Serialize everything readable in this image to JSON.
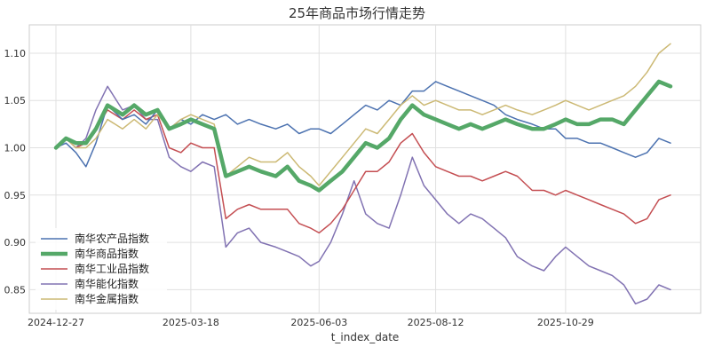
{
  "chart_data": {
    "type": "line",
    "title": "25年商品市场行情走势",
    "xlabel": "t_index_date",
    "ylabel": "",
    "x_ticks": [
      "2024-12-27",
      "2025-03-18",
      "2025-06-03",
      "2025-08-12",
      "2025-10-29"
    ],
    "x_range": [
      "2024-12-27",
      "2025-12-31"
    ],
    "ylim": [
      0.825,
      1.13
    ],
    "y_ticks": [
      0.85,
      0.9,
      0.95,
      1.0,
      1.05,
      1.1
    ],
    "y_tick_labels": [
      "0.85",
      "0.90",
      "0.95",
      "1.00",
      "1.05",
      "1.10"
    ],
    "grid": true,
    "legend_position": "lower-left",
    "series": [
      {
        "name": "南华农产品指数",
        "color": "#4c72b0",
        "points": [
          [
            "2024-12-27",
            1.0
          ],
          [
            "2025-01-02",
            1.005
          ],
          [
            "2025-01-08",
            0.995
          ],
          [
            "2025-01-14",
            0.98
          ],
          [
            "2025-01-20",
            1.005
          ],
          [
            "2025-01-27",
            1.045
          ],
          [
            "2025-02-05",
            1.03
          ],
          [
            "2025-02-12",
            1.035
          ],
          [
            "2025-02-19",
            1.025
          ],
          [
            "2025-02-26",
            1.04
          ],
          [
            "2025-03-05",
            1.02
          ],
          [
            "2025-03-12",
            1.03
          ],
          [
            "2025-03-18",
            1.025
          ],
          [
            "2025-03-25",
            1.035
          ],
          [
            "2025-04-01",
            1.03
          ],
          [
            "2025-04-08",
            1.035
          ],
          [
            "2025-04-15",
            1.025
          ],
          [
            "2025-04-22",
            1.03
          ],
          [
            "2025-04-29",
            1.025
          ],
          [
            "2025-05-08",
            1.02
          ],
          [
            "2025-05-15",
            1.025
          ],
          [
            "2025-05-22",
            1.015
          ],
          [
            "2025-05-29",
            1.02
          ],
          [
            "2025-06-03",
            1.02
          ],
          [
            "2025-06-10",
            1.015
          ],
          [
            "2025-06-17",
            1.025
          ],
          [
            "2025-06-24",
            1.035
          ],
          [
            "2025-07-01",
            1.045
          ],
          [
            "2025-07-08",
            1.04
          ],
          [
            "2025-07-15",
            1.05
          ],
          [
            "2025-07-22",
            1.045
          ],
          [
            "2025-07-29",
            1.06
          ],
          [
            "2025-08-05",
            1.06
          ],
          [
            "2025-08-12",
            1.07
          ],
          [
            "2025-08-19",
            1.065
          ],
          [
            "2025-08-26",
            1.06
          ],
          [
            "2025-09-02",
            1.055
          ],
          [
            "2025-09-09",
            1.05
          ],
          [
            "2025-09-16",
            1.045
          ],
          [
            "2025-09-23",
            1.035
          ],
          [
            "2025-09-30",
            1.03
          ],
          [
            "2025-10-09",
            1.025
          ],
          [
            "2025-10-16",
            1.02
          ],
          [
            "2025-10-23",
            1.02
          ],
          [
            "2025-10-29",
            1.01
          ],
          [
            "2025-11-05",
            1.01
          ],
          [
            "2025-11-12",
            1.005
          ],
          [
            "2025-11-19",
            1.005
          ],
          [
            "2025-11-26",
            1.0
          ],
          [
            "2025-12-03",
            0.995
          ],
          [
            "2025-12-10",
            0.99
          ],
          [
            "2025-12-17",
            0.995
          ],
          [
            "2025-12-24",
            1.01
          ],
          [
            "2025-12-31",
            1.005
          ]
        ]
      },
      {
        "name": "南华商品指数",
        "color": "#55a868",
        "points": [
          [
            "2024-12-27",
            1.0
          ],
          [
            "2025-01-02",
            1.01
          ],
          [
            "2025-01-08",
            1.005
          ],
          [
            "2025-01-14",
            1.005
          ],
          [
            "2025-01-20",
            1.02
          ],
          [
            "2025-01-27",
            1.045
          ],
          [
            "2025-02-05",
            1.035
          ],
          [
            "2025-02-12",
            1.045
          ],
          [
            "2025-02-19",
            1.035
          ],
          [
            "2025-02-26",
            1.04
          ],
          [
            "2025-03-05",
            1.02
          ],
          [
            "2025-03-12",
            1.025
          ],
          [
            "2025-03-18",
            1.03
          ],
          [
            "2025-03-25",
            1.025
          ],
          [
            "2025-04-01",
            1.02
          ],
          [
            "2025-04-08",
            0.97
          ],
          [
            "2025-04-15",
            0.975
          ],
          [
            "2025-04-22",
            0.98
          ],
          [
            "2025-04-29",
            0.975
          ],
          [
            "2025-05-08",
            0.97
          ],
          [
            "2025-05-15",
            0.98
          ],
          [
            "2025-05-22",
            0.965
          ],
          [
            "2025-05-29",
            0.96
          ],
          [
            "2025-06-03",
            0.955
          ],
          [
            "2025-06-10",
            0.965
          ],
          [
            "2025-06-17",
            0.975
          ],
          [
            "2025-06-24",
            0.99
          ],
          [
            "2025-07-01",
            1.005
          ],
          [
            "2025-07-08",
            1.0
          ],
          [
            "2025-07-15",
            1.01
          ],
          [
            "2025-07-22",
            1.03
          ],
          [
            "2025-07-29",
            1.045
          ],
          [
            "2025-08-05",
            1.035
          ],
          [
            "2025-08-12",
            1.03
          ],
          [
            "2025-08-19",
            1.025
          ],
          [
            "2025-08-26",
            1.02
          ],
          [
            "2025-09-02",
            1.025
          ],
          [
            "2025-09-09",
            1.02
          ],
          [
            "2025-09-16",
            1.025
          ],
          [
            "2025-09-23",
            1.03
          ],
          [
            "2025-09-30",
            1.025
          ],
          [
            "2025-10-09",
            1.02
          ],
          [
            "2025-10-16",
            1.02
          ],
          [
            "2025-10-23",
            1.025
          ],
          [
            "2025-10-29",
            1.03
          ],
          [
            "2025-11-05",
            1.025
          ],
          [
            "2025-11-12",
            1.025
          ],
          [
            "2025-11-19",
            1.03
          ],
          [
            "2025-11-26",
            1.03
          ],
          [
            "2025-12-03",
            1.025
          ],
          [
            "2025-12-10",
            1.04
          ],
          [
            "2025-12-17",
            1.055
          ],
          [
            "2025-12-24",
            1.07
          ],
          [
            "2025-12-31",
            1.065
          ]
        ]
      },
      {
        "name": "南华工业品指数",
        "color": "#c44e52",
        "points": [
          [
            "2024-12-27",
            1.0
          ],
          [
            "2025-01-02",
            1.01
          ],
          [
            "2025-01-08",
            1.0
          ],
          [
            "2025-01-14",
            1.005
          ],
          [
            "2025-01-20",
            1.02
          ],
          [
            "2025-01-27",
            1.04
          ],
          [
            "2025-02-05",
            1.03
          ],
          [
            "2025-02-12",
            1.04
          ],
          [
            "2025-02-19",
            1.03
          ],
          [
            "2025-02-26",
            1.035
          ],
          [
            "2025-03-05",
            1.0
          ],
          [
            "2025-03-12",
            0.995
          ],
          [
            "2025-03-18",
            1.005
          ],
          [
            "2025-03-25",
            1.0
          ],
          [
            "2025-04-01",
            1.0
          ],
          [
            "2025-04-08",
            0.925
          ],
          [
            "2025-04-15",
            0.935
          ],
          [
            "2025-04-22",
            0.94
          ],
          [
            "2025-04-29",
            0.935
          ],
          [
            "2025-05-08",
            0.935
          ],
          [
            "2025-05-15",
            0.935
          ],
          [
            "2025-05-22",
            0.92
          ],
          [
            "2025-05-29",
            0.915
          ],
          [
            "2025-06-03",
            0.91
          ],
          [
            "2025-06-10",
            0.92
          ],
          [
            "2025-06-17",
            0.935
          ],
          [
            "2025-06-24",
            0.955
          ],
          [
            "2025-07-01",
            0.975
          ],
          [
            "2025-07-08",
            0.975
          ],
          [
            "2025-07-15",
            0.985
          ],
          [
            "2025-07-22",
            1.005
          ],
          [
            "2025-07-29",
            1.015
          ],
          [
            "2025-08-05",
            0.995
          ],
          [
            "2025-08-12",
            0.98
          ],
          [
            "2025-08-19",
            0.975
          ],
          [
            "2025-08-26",
            0.97
          ],
          [
            "2025-09-02",
            0.97
          ],
          [
            "2025-09-09",
            0.965
          ],
          [
            "2025-09-16",
            0.97
          ],
          [
            "2025-09-23",
            0.975
          ],
          [
            "2025-09-30",
            0.97
          ],
          [
            "2025-10-09",
            0.955
          ],
          [
            "2025-10-16",
            0.955
          ],
          [
            "2025-10-23",
            0.95
          ],
          [
            "2025-10-29",
            0.955
          ],
          [
            "2025-11-05",
            0.95
          ],
          [
            "2025-11-12",
            0.945
          ],
          [
            "2025-11-19",
            0.94
          ],
          [
            "2025-11-26",
            0.935
          ],
          [
            "2025-12-03",
            0.93
          ],
          [
            "2025-12-10",
            0.92
          ],
          [
            "2025-12-17",
            0.925
          ],
          [
            "2025-12-24",
            0.945
          ],
          [
            "2025-12-31",
            0.95
          ]
        ]
      },
      {
        "name": "南华能化指数",
        "color": "#8172b2",
        "points": [
          [
            "2024-12-27",
            1.0
          ],
          [
            "2025-01-02",
            1.01
          ],
          [
            "2025-01-08",
            1.0
          ],
          [
            "2025-01-14",
            1.01
          ],
          [
            "2025-01-20",
            1.04
          ],
          [
            "2025-01-27",
            1.065
          ],
          [
            "2025-02-05",
            1.04
          ],
          [
            "2025-02-12",
            1.045
          ],
          [
            "2025-02-19",
            1.03
          ],
          [
            "2025-02-26",
            1.03
          ],
          [
            "2025-03-05",
            0.99
          ],
          [
            "2025-03-12",
            0.98
          ],
          [
            "2025-03-18",
            0.975
          ],
          [
            "2025-03-25",
            0.985
          ],
          [
            "2025-04-01",
            0.98
          ],
          [
            "2025-04-08",
            0.895
          ],
          [
            "2025-04-15",
            0.91
          ],
          [
            "2025-04-22",
            0.915
          ],
          [
            "2025-04-29",
            0.9
          ],
          [
            "2025-05-08",
            0.895
          ],
          [
            "2025-05-15",
            0.89
          ],
          [
            "2025-05-22",
            0.885
          ],
          [
            "2025-05-29",
            0.875
          ],
          [
            "2025-06-03",
            0.88
          ],
          [
            "2025-06-10",
            0.9
          ],
          [
            "2025-06-17",
            0.93
          ],
          [
            "2025-06-24",
            0.965
          ],
          [
            "2025-07-01",
            0.93
          ],
          [
            "2025-07-08",
            0.92
          ],
          [
            "2025-07-15",
            0.915
          ],
          [
            "2025-07-22",
            0.95
          ],
          [
            "2025-07-29",
            0.99
          ],
          [
            "2025-08-05",
            0.96
          ],
          [
            "2025-08-12",
            0.945
          ],
          [
            "2025-08-19",
            0.93
          ],
          [
            "2025-08-26",
            0.92
          ],
          [
            "2025-09-02",
            0.93
          ],
          [
            "2025-09-09",
            0.925
          ],
          [
            "2025-09-16",
            0.915
          ],
          [
            "2025-09-23",
            0.905
          ],
          [
            "2025-09-30",
            0.885
          ],
          [
            "2025-10-09",
            0.875
          ],
          [
            "2025-10-16",
            0.87
          ],
          [
            "2025-10-23",
            0.885
          ],
          [
            "2025-10-29",
            0.895
          ],
          [
            "2025-11-05",
            0.885
          ],
          [
            "2025-11-12",
            0.875
          ],
          [
            "2025-11-19",
            0.87
          ],
          [
            "2025-11-26",
            0.865
          ],
          [
            "2025-12-03",
            0.855
          ],
          [
            "2025-12-10",
            0.835
          ],
          [
            "2025-12-17",
            0.84
          ],
          [
            "2025-12-24",
            0.855
          ],
          [
            "2025-12-31",
            0.85
          ]
        ]
      },
      {
        "name": "南华金属指数",
        "color": "#ccb974",
        "points": [
          [
            "2024-12-27",
            1.0
          ],
          [
            "2025-01-02",
            1.01
          ],
          [
            "2025-01-08",
            1.0
          ],
          [
            "2025-01-14",
            1.0
          ],
          [
            "2025-01-20",
            1.01
          ],
          [
            "2025-01-27",
            1.03
          ],
          [
            "2025-02-05",
            1.02
          ],
          [
            "2025-02-12",
            1.03
          ],
          [
            "2025-02-19",
            1.02
          ],
          [
            "2025-02-26",
            1.035
          ],
          [
            "2025-03-05",
            1.02
          ],
          [
            "2025-03-12",
            1.03
          ],
          [
            "2025-03-18",
            1.035
          ],
          [
            "2025-03-25",
            1.03
          ],
          [
            "2025-04-01",
            1.025
          ],
          [
            "2025-04-08",
            0.97
          ],
          [
            "2025-04-15",
            0.98
          ],
          [
            "2025-04-22",
            0.99
          ],
          [
            "2025-04-29",
            0.985
          ],
          [
            "2025-05-08",
            0.985
          ],
          [
            "2025-05-15",
            0.995
          ],
          [
            "2025-05-22",
            0.98
          ],
          [
            "2025-05-29",
            0.97
          ],
          [
            "2025-06-03",
            0.96
          ],
          [
            "2025-06-10",
            0.975
          ],
          [
            "2025-06-17",
            0.99
          ],
          [
            "2025-06-24",
            1.005
          ],
          [
            "2025-07-01",
            1.02
          ],
          [
            "2025-07-08",
            1.015
          ],
          [
            "2025-07-15",
            1.03
          ],
          [
            "2025-07-22",
            1.045
          ],
          [
            "2025-07-29",
            1.055
          ],
          [
            "2025-08-05",
            1.045
          ],
          [
            "2025-08-12",
            1.05
          ],
          [
            "2025-08-19",
            1.045
          ],
          [
            "2025-08-26",
            1.04
          ],
          [
            "2025-09-02",
            1.04
          ],
          [
            "2025-09-09",
            1.035
          ],
          [
            "2025-09-16",
            1.04
          ],
          [
            "2025-09-23",
            1.045
          ],
          [
            "2025-09-30",
            1.04
          ],
          [
            "2025-10-09",
            1.035
          ],
          [
            "2025-10-16",
            1.04
          ],
          [
            "2025-10-23",
            1.045
          ],
          [
            "2025-10-29",
            1.05
          ],
          [
            "2025-11-05",
            1.045
          ],
          [
            "2025-11-12",
            1.04
          ],
          [
            "2025-11-19",
            1.045
          ],
          [
            "2025-11-26",
            1.05
          ],
          [
            "2025-12-03",
            1.055
          ],
          [
            "2025-12-10",
            1.065
          ],
          [
            "2025-12-17",
            1.08
          ],
          [
            "2025-12-24",
            1.1
          ],
          [
            "2025-12-31",
            1.11
          ]
        ]
      }
    ]
  }
}
